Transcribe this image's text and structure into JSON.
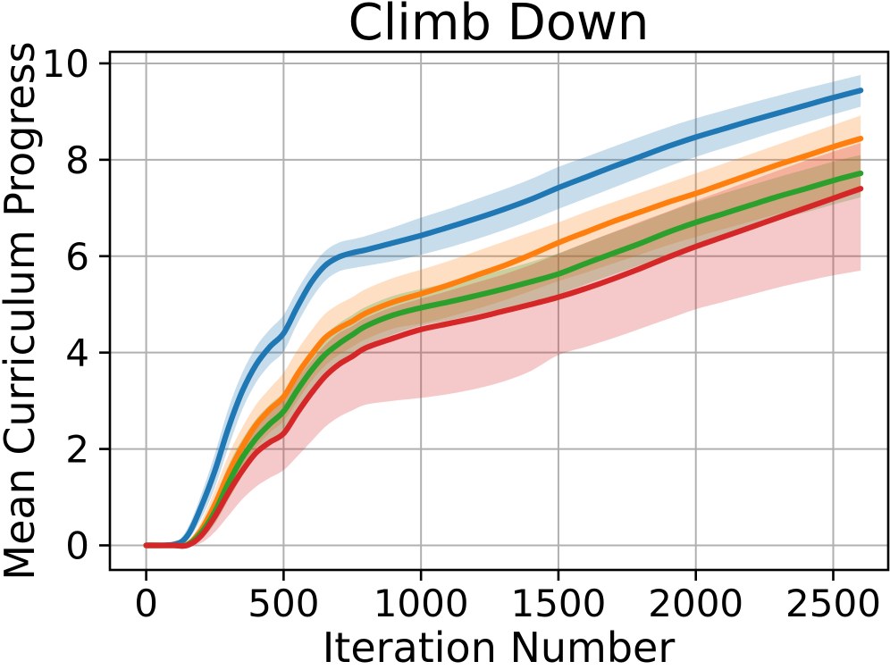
{
  "chart_data": {
    "type": "line",
    "title": "Climb Down",
    "xlabel": "Iteration Number",
    "ylabel": "Mean Curriculum Progress",
    "xlim": [
      -132,
      2700
    ],
    "ylim": [
      -0.51,
      10.24
    ],
    "xticks": [
      0,
      500,
      1000,
      1500,
      2000,
      2500
    ],
    "yticks": [
      0,
      2,
      4,
      6,
      8,
      10
    ],
    "grid": true,
    "legend": "none",
    "grid_color": "#b0b0b0",
    "spine_color": "#000000",
    "band_opacity": 0.25,
    "x": [
      0,
      100,
      150,
      200,
      250,
      300,
      350,
      400,
      450,
      500,
      550,
      600,
      650,
      700,
      750,
      800,
      900,
      1000,
      1100,
      1200,
      1300,
      1400,
      1500,
      1600,
      1700,
      1800,
      1900,
      2000,
      2100,
      2200,
      2300,
      2400,
      2500,
      2600
    ],
    "series": [
      {
        "name": "run-blue",
        "color": "#1f77b4",
        "mean": [
          0,
          0.02,
          0.2,
          0.8,
          1.55,
          2.45,
          3.2,
          3.75,
          4.12,
          4.4,
          4.95,
          5.45,
          5.8,
          5.98,
          6.07,
          6.13,
          6.28,
          6.43,
          6.6,
          6.78,
          6.97,
          7.18,
          7.42,
          7.64,
          7.86,
          8.07,
          8.28,
          8.47,
          8.64,
          8.81,
          8.97,
          9.13,
          9.29,
          9.44
        ],
        "lo": [
          0,
          0,
          0.1,
          0.55,
          1.2,
          2.05,
          2.82,
          3.38,
          3.75,
          4.02,
          4.6,
          5.1,
          5.48,
          5.68,
          5.75,
          5.8,
          5.9,
          6.03,
          6.18,
          6.35,
          6.54,
          6.75,
          6.98,
          7.2,
          7.42,
          7.64,
          7.86,
          8.06,
          8.24,
          8.42,
          8.6,
          8.77,
          8.94,
          9.1
        ],
        "hi": [
          0,
          0.05,
          0.35,
          1.05,
          1.9,
          2.85,
          3.58,
          4.12,
          4.48,
          4.78,
          5.3,
          5.75,
          6.1,
          6.28,
          6.35,
          6.42,
          6.6,
          6.8,
          6.98,
          7.18,
          7.38,
          7.6,
          7.85,
          8.06,
          8.27,
          8.48,
          8.68,
          8.86,
          9.02,
          9.18,
          9.33,
          9.48,
          9.62,
          9.76
        ]
      },
      {
        "name": "run-orange",
        "color": "#ff7f0e",
        "mean": [
          0,
          0,
          0.02,
          0.32,
          0.85,
          1.5,
          2.05,
          2.5,
          2.82,
          3.08,
          3.55,
          3.95,
          4.3,
          4.5,
          4.65,
          4.82,
          5.05,
          5.22,
          5.4,
          5.6,
          5.8,
          6.03,
          6.28,
          6.5,
          6.72,
          6.92,
          7.12,
          7.3,
          7.5,
          7.7,
          7.9,
          8.08,
          8.27,
          8.44
        ],
        "lo": [
          0,
          0,
          0,
          0.17,
          0.55,
          1.1,
          1.62,
          2.03,
          2.34,
          2.58,
          3.0,
          3.4,
          3.72,
          3.95,
          4.12,
          4.28,
          4.5,
          4.6,
          4.74,
          4.9,
          5.08,
          5.28,
          5.48,
          5.66,
          5.85,
          6.04,
          6.23,
          6.4,
          6.56,
          6.72,
          6.88,
          7.03,
          7.18,
          7.32
        ],
        "hi": [
          0,
          0,
          0.06,
          0.5,
          1.15,
          1.88,
          2.45,
          2.92,
          3.26,
          3.58,
          4.05,
          4.45,
          4.8,
          5.0,
          5.15,
          5.32,
          5.55,
          5.72,
          5.9,
          6.1,
          6.3,
          6.5,
          6.7,
          6.92,
          7.12,
          7.32,
          7.52,
          7.72,
          7.92,
          8.12,
          8.32,
          8.52,
          8.72,
          8.92
        ]
      },
      {
        "name": "run-green",
        "color": "#2ca02c",
        "mean": [
          0,
          0,
          0.01,
          0.26,
          0.7,
          1.3,
          1.82,
          2.22,
          2.52,
          2.78,
          3.22,
          3.62,
          3.95,
          4.18,
          4.37,
          4.55,
          4.78,
          4.93,
          5.05,
          5.18,
          5.32,
          5.47,
          5.63,
          5.85,
          6.06,
          6.27,
          6.5,
          6.7,
          6.88,
          7.06,
          7.24,
          7.4,
          7.57,
          7.72
        ],
        "lo": [
          0,
          0,
          0,
          0.13,
          0.45,
          0.95,
          1.44,
          1.84,
          2.14,
          2.4,
          2.82,
          3.2,
          3.54,
          3.78,
          3.96,
          4.14,
          4.38,
          4.56,
          4.67,
          4.79,
          4.92,
          5.06,
          5.21,
          5.42,
          5.62,
          5.82,
          6.04,
          6.24,
          6.42,
          6.59,
          6.76,
          6.91,
          7.07,
          7.22
        ],
        "hi": [
          0,
          0,
          0.05,
          0.42,
          0.98,
          1.67,
          2.2,
          2.62,
          2.92,
          3.18,
          3.62,
          4.02,
          4.36,
          4.6,
          4.78,
          4.95,
          5.18,
          5.32,
          5.44,
          5.57,
          5.72,
          5.88,
          6.06,
          6.28,
          6.49,
          6.7,
          6.92,
          7.12,
          7.3,
          7.47,
          7.64,
          7.8,
          7.96,
          8.1
        ]
      },
      {
        "name": "run-red",
        "color": "#d62728",
        "mean": [
          0,
          0,
          0,
          0.2,
          0.6,
          1.1,
          1.55,
          1.92,
          2.14,
          2.32,
          2.75,
          3.15,
          3.5,
          3.75,
          3.92,
          4.1,
          4.3,
          4.48,
          4.6,
          4.72,
          4.86,
          5.0,
          5.15,
          5.33,
          5.53,
          5.75,
          5.98,
          6.2,
          6.4,
          6.6,
          6.8,
          7.0,
          7.2,
          7.4
        ],
        "lo": [
          0,
          0,
          0,
          0.05,
          0.28,
          0.62,
          0.96,
          1.22,
          1.4,
          1.56,
          1.85,
          2.15,
          2.45,
          2.66,
          2.8,
          2.92,
          3.0,
          3.06,
          3.14,
          3.25,
          3.4,
          3.62,
          3.95,
          4.12,
          4.3,
          4.5,
          4.7,
          4.9,
          5.05,
          5.2,
          5.35,
          5.48,
          5.6,
          5.7
        ],
        "hi": [
          0,
          0,
          0.02,
          0.36,
          0.92,
          1.56,
          2.1,
          2.5,
          2.78,
          3.0,
          3.45,
          3.82,
          4.15,
          4.4,
          4.55,
          4.72,
          4.95,
          5.12,
          5.28,
          5.45,
          5.62,
          5.82,
          6.05,
          6.28,
          6.5,
          6.72,
          6.93,
          7.15,
          7.36,
          7.57,
          7.78,
          7.98,
          8.17,
          8.35
        ]
      }
    ]
  }
}
